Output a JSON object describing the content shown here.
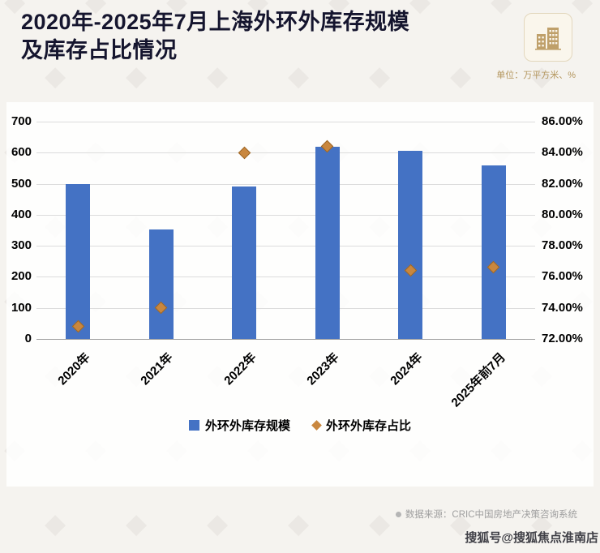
{
  "header": {
    "title_line1": "2020年-2025年7月上海外环外库存规模",
    "title_line2": "及库存占比情况",
    "unit_note": "单位：万平方米、%"
  },
  "chart_data": {
    "type": "bar",
    "title": "2020年-2025年7月上海外环外库存规模及库存占比情况",
    "categories": [
      "2020年",
      "2021年",
      "2022年",
      "2023年",
      "2024年",
      "2025年前7月"
    ],
    "series": [
      {
        "name": "外环外库存规模",
        "type": "bar",
        "axis": "left",
        "marker": "square",
        "color": "#4472c4",
        "values": [
          500,
          352,
          490,
          620,
          605,
          560
        ]
      },
      {
        "name": "外环外库存占比",
        "type": "scatter",
        "axis": "right",
        "marker": "diamond",
        "color": "#c9873e",
        "values": [
          72.8,
          74.0,
          84.0,
          84.4,
          76.4,
          76.6
        ]
      }
    ],
    "left_axis": {
      "min": 0,
      "max": 700,
      "step": 100,
      "ticks": [
        "0",
        "100",
        "200",
        "300",
        "400",
        "500",
        "600",
        "700"
      ]
    },
    "right_axis": {
      "min": 72,
      "max": 86,
      "step": 2,
      "ticks": [
        "72.00%",
        "74.00%",
        "76.00%",
        "78.00%",
        "80.00%",
        "82.00%",
        "84.00%",
        "86.00%"
      ]
    },
    "grid": true,
    "legend_position": "bottom",
    "unit": "万平方米、%"
  },
  "footer": {
    "source": "数据来源：CRIC中国房地产决策咨询系统",
    "watermark": "搜狐号@搜狐焦点淮南店"
  },
  "colors": {
    "bar": "#4472c4",
    "point": "#c9873e",
    "accent": "#b3955c"
  }
}
